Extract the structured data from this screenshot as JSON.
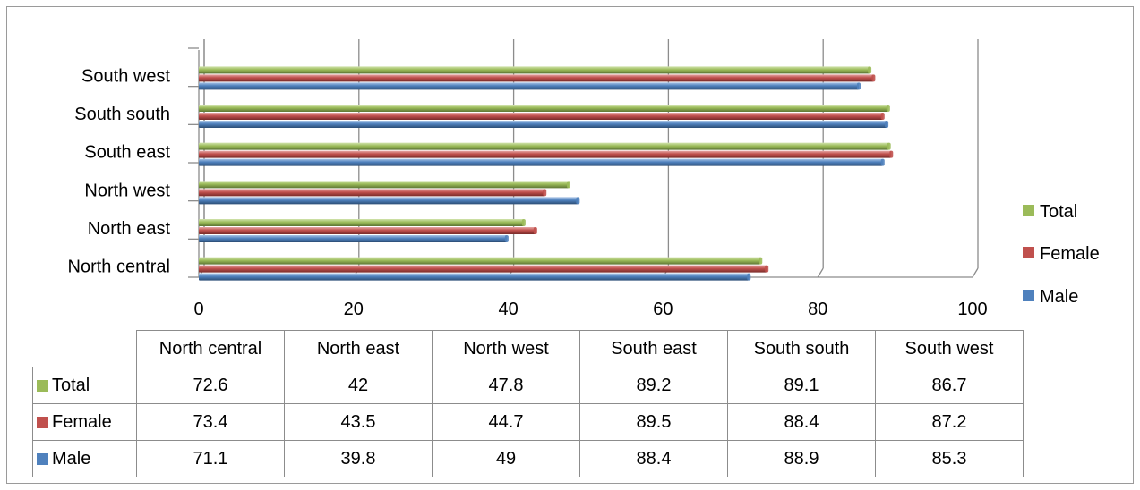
{
  "chart_data": {
    "type": "bar",
    "orientation": "horizontal",
    "categories": [
      "North central",
      "North east",
      "North west",
      "South east",
      "South south",
      "South west"
    ],
    "series": [
      {
        "name": "Male",
        "color": "#4f81bd",
        "values": [
          71.1,
          39.8,
          49,
          88.4,
          88.9,
          85.3
        ]
      },
      {
        "name": "Female",
        "color": "#c0504d",
        "values": [
          73.4,
          43.5,
          44.7,
          89.5,
          88.4,
          87.2
        ]
      },
      {
        "name": "Total",
        "color": "#9bbb59",
        "values": [
          72.6,
          42,
          47.8,
          89.2,
          89.1,
          86.7
        ]
      }
    ],
    "xlim": [
      0,
      100
    ],
    "x_ticks": [
      "0",
      "20",
      "40",
      "60",
      "80",
      "100"
    ],
    "grid": "vertical",
    "legend": "right",
    "legend_order": [
      "Total",
      "Female",
      "Male"
    ],
    "data_table": {
      "columns": [
        "North central",
        "North east",
        "North west",
        "South east",
        "South south",
        "South west"
      ],
      "rows": [
        {
          "label": "Total",
          "color": "#9bbb59",
          "values": [
            "72.6",
            "42",
            "47.8",
            "89.2",
            "89.1",
            "86.7"
          ]
        },
        {
          "label": "Female",
          "color": "#c0504d",
          "values": [
            "73.4",
            "43.5",
            "44.7",
            "89.5",
            "88.4",
            "87.2"
          ]
        },
        {
          "label": "Male",
          "color": "#4f81bd",
          "values": [
            "71.1",
            "39.8",
            "49",
            "88.4",
            "88.9",
            "85.3"
          ]
        }
      ]
    }
  }
}
